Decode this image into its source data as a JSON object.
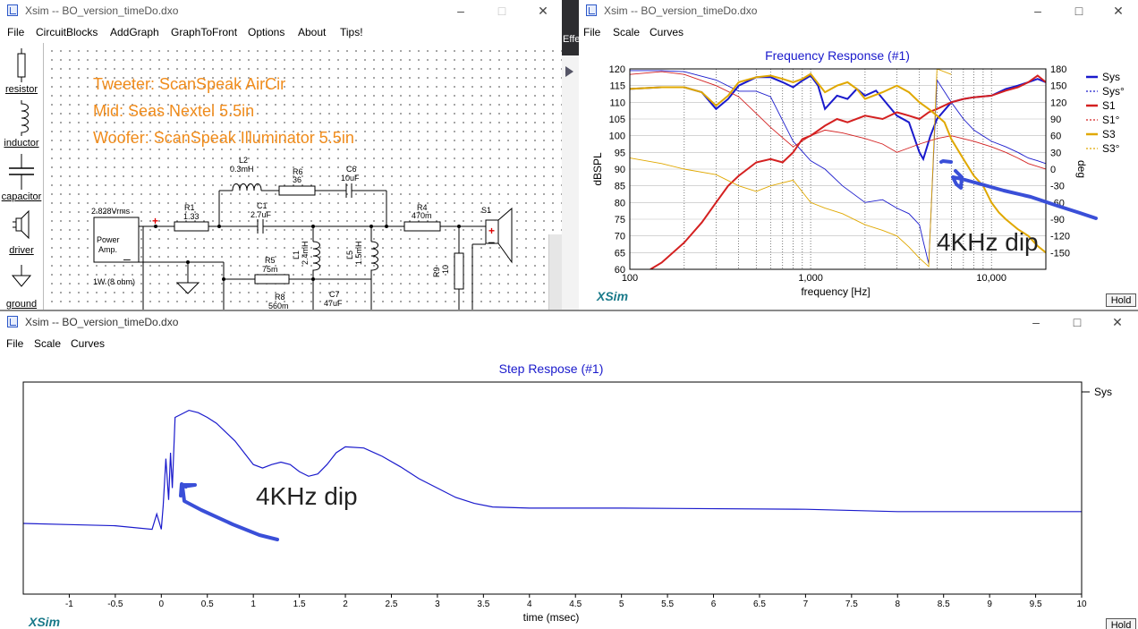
{
  "schematic_window": {
    "title": "Xsim -- BO_version_timeDo.dxo",
    "menu": [
      "File",
      "CircuitBlocks",
      "AddGraph",
      "GraphToFront",
      "Options",
      "About",
      "Tips!"
    ],
    "tools": [
      {
        "label": "resistor",
        "icon": "resistor-icon"
      },
      {
        "label": "inductor",
        "icon": "inductor-icon"
      },
      {
        "label": "capacitor",
        "icon": "capacitor-icon"
      },
      {
        "label": "driver",
        "icon": "speaker-icon"
      },
      {
        "label": "ground",
        "icon": "ground-icon"
      }
    ],
    "notes": [
      "Tweeter: ScanSpeak AirCir",
      "Mid: Seas Nextel 5.5in",
      "Woofer: ScanSpeak Illuminator 5.5in"
    ],
    "components": {
      "source_voltage": "2.828Vrms",
      "amp_label_1": "Power",
      "amp_label_2": "Amp.",
      "amp_load": "1W (8 ohm)",
      "r1_name": "R1",
      "r1_value": "1.33",
      "l2_name": "L2",
      "l2_value": "0.3mH",
      "r6_name": "R6",
      "r6_value": "36",
      "c6_name": "C6",
      "c6_value": "10uF",
      "c1_name": "C1",
      "c1_value": "2.7uF",
      "r4_name": "R4",
      "r4_value": "470m",
      "s1_name": "S1",
      "l1_name": "L1",
      "l1_value": "2.4mH",
      "l5_name": "L5",
      "l5_value": "1.5mH",
      "r5_name": "R5",
      "r5_value": "75m",
      "r8_name": "R8",
      "r8_value": "560m",
      "c7_name": "C7",
      "c7_value": "47uF",
      "r9_name": "R9",
      "r9_value": "10"
    }
  },
  "background_strip": {
    "text": "Effe"
  },
  "freq_window": {
    "title": "Xsim -- BO_version_timeDo.dxo",
    "menu": [
      "File",
      "Scale",
      "Curves"
    ],
    "hold_label": "Hold",
    "brand": "XSim",
    "annotation": "4KHz dip"
  },
  "step_window": {
    "title": "Xsim -- BO_version_timeDo.dxo",
    "menu": [
      "File",
      "Scale",
      "Curves"
    ],
    "hold_label": "Hold",
    "brand": "XSim",
    "annotation": "4KHz dip"
  },
  "chart_data": [
    {
      "type": "line",
      "title": "Frequency Response (#1)",
      "xlabel": "frequency [Hz]",
      "ylabel": "dBSPL",
      "y2label": "deg",
      "xscale": "log",
      "xlim": [
        100,
        20000
      ],
      "ylim": [
        60,
        120
      ],
      "y2lim": [
        -180,
        180
      ],
      "x_tick_labels": [
        "100",
        "1,000",
        "10,000"
      ],
      "y_ticks": [
        120,
        115,
        110,
        105,
        100,
        95,
        90,
        85,
        80,
        75,
        70,
        65,
        60
      ],
      "y2_ticks": [
        180,
        150,
        120,
        90,
        60,
        30,
        0,
        -30,
        -60,
        -90,
        -120,
        -150
      ],
      "legend_position": "right",
      "series": [
        {
          "name": "Sys",
          "color": "#1a1acc",
          "style": "solid",
          "axis": "left",
          "x": [
            100,
            150,
            200,
            250,
            300,
            350,
            400,
            500,
            600,
            700,
            800,
            900,
            1000,
            1100,
            1200,
            1400,
            1600,
            1800,
            2000,
            2300,
            2600,
            3000,
            3500,
            4000,
            4200,
            4600,
            5000,
            6000,
            7000,
            8000,
            10000,
            12000,
            14000,
            16000,
            18000,
            20000
          ],
          "y": [
            114,
            114.5,
            114.5,
            113,
            108,
            111,
            115,
            117.5,
            117.5,
            116,
            114.5,
            116.5,
            118,
            115,
            108,
            112,
            111,
            114,
            112,
            113.5,
            110,
            106,
            104,
            95,
            93,
            100,
            105,
            110,
            111,
            111.5,
            112,
            114,
            115,
            116,
            117,
            116
          ]
        },
        {
          "name": "Sys°",
          "color": "#1a1acc",
          "style": "dashed",
          "axis": "right",
          "x": [
            100,
            150,
            200,
            300,
            400,
            500,
            600,
            800,
            1000,
            1200,
            1500,
            2000,
            2500,
            3000,
            3500,
            4000,
            4200,
            4500,
            5000,
            6000,
            7000,
            8000,
            10000,
            12000,
            14000,
            16000,
            18000,
            20000
          ],
          "y": [
            177,
            177,
            175,
            160,
            140,
            140,
            130,
            50,
            15,
            0,
            -30,
            -60,
            -55,
            -70,
            -80,
            -100,
            -130,
            -170,
            160,
            120,
            90,
            70,
            50,
            40,
            30,
            20,
            15,
            10
          ]
        },
        {
          "name": "S1",
          "color": "#d42020",
          "style": "solid",
          "axis": "left",
          "x": [
            130,
            150,
            200,
            250,
            300,
            350,
            400,
            500,
            600,
            700,
            800,
            900,
            1000,
            1200,
            1400,
            1600,
            2000,
            2500,
            3000,
            3500,
            4000,
            4500,
            5000,
            6000,
            7000,
            8000,
            10000,
            12000,
            14000,
            16000,
            18000,
            20000
          ],
          "y": [
            60,
            62,
            68,
            74,
            80,
            85,
            88,
            92,
            93,
            92,
            95,
            99,
            100,
            103,
            105,
            104,
            106,
            105,
            107,
            106,
            105,
            107,
            108,
            110,
            111,
            111.5,
            112,
            113.5,
            114.5,
            116,
            118,
            116
          ]
        },
        {
          "name": "S1°",
          "color": "#d42020",
          "style": "dashed",
          "axis": "right",
          "x": [
            100,
            150,
            200,
            300,
            400,
            500,
            600,
            800,
            1000,
            1200,
            1500,
            2000,
            2500,
            3000,
            4000,
            5000,
            6000,
            8000,
            10000,
            12000,
            14000,
            16000,
            20000
          ],
          "y": [
            170,
            175,
            170,
            150,
            130,
            100,
            75,
            40,
            60,
            70,
            65,
            55,
            45,
            30,
            45,
            55,
            60,
            50,
            40,
            30,
            20,
            10,
            0
          ]
        },
        {
          "name": "S3",
          "color": "#e0a800",
          "style": "solid",
          "axis": "left",
          "x": [
            100,
            150,
            200,
            250,
            300,
            350,
            400,
            500,
            600,
            700,
            800,
            900,
            1000,
            1200,
            1400,
            1600,
            1800,
            2000,
            2500,
            3000,
            3500,
            4000,
            4500,
            5000,
            5500,
            6000,
            7000,
            8000,
            9000,
            10000,
            11000,
            12000,
            14000,
            16000,
            18000,
            20000
          ],
          "y": [
            114,
            114.5,
            114.5,
            113,
            109,
            112,
            116,
            117.5,
            118,
            117,
            116,
            117,
            118.5,
            113,
            115,
            116,
            114,
            111,
            113,
            115,
            113,
            110,
            108,
            106,
            104,
            99,
            93,
            88,
            85,
            80,
            77,
            75,
            72,
            70,
            67,
            65
          ]
        },
        {
          "name": "S3°",
          "color": "#e0a800",
          "style": "dashed",
          "axis": "right",
          "x": [
            100,
            150,
            200,
            300,
            400,
            500,
            600,
            800,
            1000,
            1200,
            1500,
            2000,
            2500,
            3000,
            3500,
            4000,
            4500,
            5000,
            6000
          ],
          "y": [
            20,
            10,
            0,
            -10,
            -30,
            -40,
            -30,
            -20,
            -60,
            -70,
            -80,
            -100,
            -110,
            -120,
            -140,
            -160,
            -175,
            180,
            170
          ]
        }
      ]
    },
    {
      "type": "line",
      "title": "Step Respose (#1)",
      "xlabel": "time (msec)",
      "xlim": [
        -1.5,
        10
      ],
      "x_tick_labels": [
        "-1",
        "-0.5",
        "0",
        "0.5",
        "1",
        "1.5",
        "2",
        "2.5",
        "3",
        "3.5",
        "4",
        "4.5",
        "5",
        "5.5",
        "6",
        "6.5",
        "7",
        "7.5",
        "8",
        "8.5",
        "9",
        "9.5",
        "10"
      ],
      "ylim": [
        -0.6,
        1.2
      ],
      "legend_position": "right",
      "series": [
        {
          "name": "Sys",
          "color": "#1a1acc",
          "x": [
            -1.5,
            -1.0,
            -0.5,
            -0.1,
            -0.05,
            0.0,
            0.02,
            0.05,
            0.08,
            0.1,
            0.12,
            0.15,
            0.2,
            0.3,
            0.4,
            0.5,
            0.6,
            0.8,
            1.0,
            1.1,
            1.2,
            1.3,
            1.4,
            1.5,
            1.6,
            1.7,
            1.8,
            1.9,
            2.0,
            2.2,
            2.4,
            2.6,
            2.8,
            3.0,
            3.2,
            3.4,
            3.6,
            4.0,
            5.0,
            7.0,
            8.0,
            10.0
          ],
          "y": [
            0.0,
            -0.01,
            -0.02,
            -0.05,
            0.08,
            -0.05,
            0.15,
            0.55,
            0.2,
            0.6,
            0.3,
            0.9,
            0.92,
            0.96,
            0.94,
            0.9,
            0.85,
            0.7,
            0.5,
            0.47,
            0.5,
            0.52,
            0.5,
            0.44,
            0.4,
            0.42,
            0.5,
            0.6,
            0.65,
            0.64,
            0.57,
            0.48,
            0.38,
            0.3,
            0.22,
            0.17,
            0.14,
            0.13,
            0.13,
            0.12,
            0.1,
            0.1
          ]
        }
      ]
    }
  ]
}
